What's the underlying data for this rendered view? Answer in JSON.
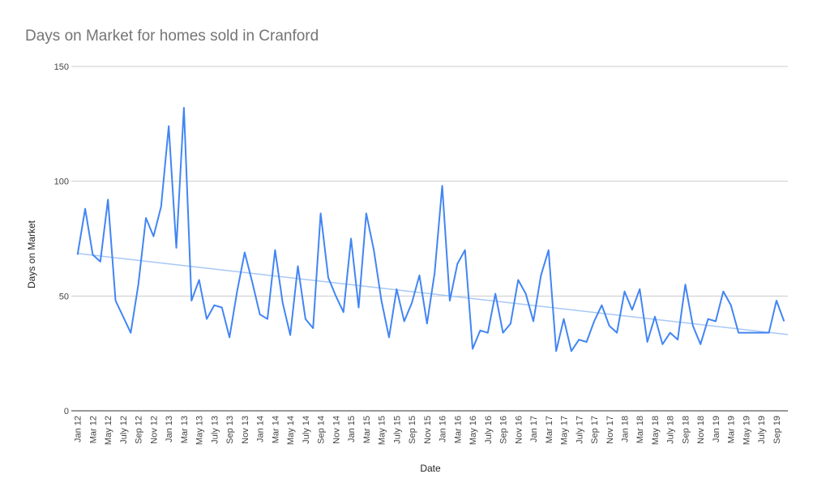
{
  "chart_data": {
    "type": "line",
    "title": "Days on Market for homes sold in Cranford",
    "x_label": "Date",
    "y_label": "Days on Market",
    "categories": [
      "Jan 12",
      null,
      "Mar 12",
      null,
      "May 12",
      null,
      "July 12",
      null,
      "Sep 12",
      null,
      "Nov 12",
      null,
      "Jan 13",
      null,
      "Mar 13",
      null,
      "May 13",
      null,
      "July 13",
      null,
      "Sep 13",
      null,
      "Nov 13",
      null,
      "Jan 14",
      null,
      "Mar 14",
      null,
      "May 14",
      null,
      "July 14",
      null,
      "Sep 14",
      null,
      "Nov 14",
      null,
      "Jan 15",
      null,
      "Mar 15",
      null,
      "May 15",
      null,
      "July 15",
      null,
      "Sep 15",
      null,
      "Nov 15",
      null,
      "Jan 16",
      null,
      "Mar 16",
      null,
      "May 16",
      null,
      "July 16",
      null,
      "Sep 16",
      null,
      "Nov 16",
      null,
      "Jan 17",
      null,
      "Mar 17",
      null,
      "May 17",
      null,
      "July 17",
      null,
      "Sep 17",
      null,
      "Nov 17",
      null,
      "Jan 18",
      null,
      "Mar 18",
      null,
      "May 18",
      null,
      "July 18",
      null,
      "Sep 18",
      null,
      "Nov 18",
      null,
      "Jan 19",
      null,
      "Mar 19",
      null,
      "May 19",
      null,
      "July 19",
      null,
      "Sep 19",
      null
    ],
    "series": [
      {
        "name": "Days on Market",
        "color": "#4285f4",
        "values": [
          68,
          88,
          68,
          65,
          92,
          48,
          41,
          34,
          55,
          84,
          76,
          89,
          124,
          71,
          132,
          48,
          57,
          40,
          46,
          45,
          32,
          52,
          69,
          56,
          42,
          40,
          70,
          47,
          33,
          63,
          40,
          36,
          86,
          58,
          50,
          43,
          75,
          45,
          86,
          70,
          48,
          32,
          53,
          39,
          47,
          59,
          38,
          60,
          98,
          48,
          64,
          70,
          27,
          35,
          34,
          51,
          34,
          38,
          57,
          51,
          39,
          59,
          70,
          26,
          40,
          26,
          31,
          30,
          39,
          46,
          37,
          34,
          52,
          44,
          53,
          30,
          41,
          29,
          34,
          31,
          55,
          37,
          29,
          40,
          39,
          52,
          46,
          34,
          34,
          34,
          34,
          34,
          48,
          39
        ]
      }
    ],
    "trendline": {
      "type": "linear",
      "color": "#a8c8f5"
    },
    "ylim": [
      0,
      150
    ],
    "yticks": [
      0,
      50,
      100,
      150
    ],
    "grid": true
  }
}
